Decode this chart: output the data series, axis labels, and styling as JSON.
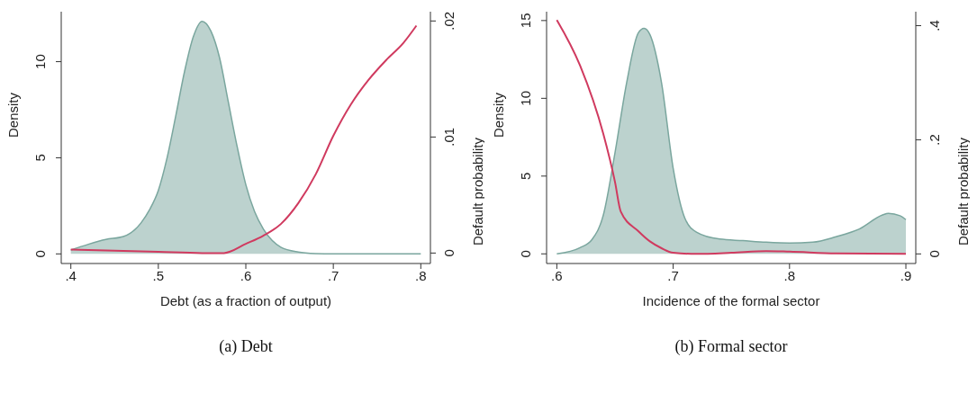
{
  "chart_data": [
    {
      "type": "area",
      "title": "(a)  Debt",
      "xlabel": "Debt (as a fraction of output)",
      "ylabel": "Density",
      "y2label": "Default probability",
      "xlim": [
        0.389,
        0.811
      ],
      "xticks": [
        {
          "value": 0.4,
          "label": ".4"
        },
        {
          "value": 0.5,
          "label": ".5"
        },
        {
          "value": 0.6,
          "label": ".6"
        },
        {
          "value": 0.7,
          "label": ".7"
        },
        {
          "value": 0.8,
          "label": ".8"
        }
      ],
      "ylim": [
        -0.5,
        12.6
      ],
      "yticks": [
        0,
        5,
        10
      ],
      "y2lim": [
        -0.0009,
        0.0208
      ],
      "y2ticks": [
        {
          "value": 0,
          "label": "0"
        },
        {
          "value": 0.01,
          "label": ".01"
        },
        {
          "value": 0.02,
          "label": ".02"
        }
      ],
      "series": [
        {
          "color": "#7aa69e",
          "x": [
            0.4,
            0.42,
            0.44,
            0.46,
            0.48,
            0.49,
            0.5,
            0.51,
            0.52,
            0.53,
            0.54,
            0.55,
            0.56,
            0.57,
            0.58,
            0.59,
            0.6,
            0.61,
            0.62,
            0.63,
            0.64,
            0.66,
            0.68,
            0.7,
            0.8
          ],
          "values": [
            0.2,
            0.5,
            0.75,
            0.9,
            1.6,
            2.3,
            3.3,
            5,
            7.2,
            9.5,
            11.3,
            12.1,
            11.6,
            10.2,
            7.9,
            5.6,
            3.6,
            2.2,
            1.3,
            0.7,
            0.35,
            0.1,
            0.02,
            0,
            0
          ]
        },
        {
          "type": "line",
          "axis": "y2",
          "color": "#d03a5f",
          "x": [
            0.4,
            0.45,
            0.5,
            0.55,
            0.575,
            0.6,
            0.62,
            0.64,
            0.66,
            0.68,
            0.7,
            0.72,
            0.74,
            0.76,
            0.78,
            0.795
          ],
          "values": [
            0.0003,
            0.0002,
            0.0001,
            0,
            0,
            0.0008,
            0.0015,
            0.0025,
            0.0043,
            0.0068,
            0.0101,
            0.0128,
            0.0149,
            0.0166,
            0.0181,
            0.0196
          ]
        }
      ]
    },
    {
      "type": "area",
      "title": "(b)  Formal sector",
      "xlabel": "Incidence of the formal sector",
      "ylabel": "Density",
      "y2label": "Default probability",
      "xlim": [
        0.5912,
        0.9085
      ],
      "xticks": [
        {
          "value": 0.6,
          "label": ".6"
        },
        {
          "value": 0.7,
          "label": ".7"
        },
        {
          "value": 0.8,
          "label": ".8"
        },
        {
          "value": 0.9,
          "label": ".9"
        }
      ],
      "ylim": [
        -0.62,
        15.57
      ],
      "yticks": [
        0,
        5,
        10,
        15
      ],
      "y2lim": [
        -0.0168,
        0.4245
      ],
      "y2ticks": [
        {
          "value": 0,
          "label": "0"
        },
        {
          "value": 0.2,
          "label": ".2"
        },
        {
          "value": 0.4,
          "label": ".4"
        }
      ],
      "series": [
        {
          "color": "#7aa69e",
          "x": [
            0.6,
            0.62,
            0.63,
            0.64,
            0.65,
            0.66,
            0.67,
            0.675,
            0.68,
            0.69,
            0.7,
            0.71,
            0.72,
            0.74,
            0.76,
            0.78,
            0.8,
            0.82,
            0.84,
            0.86,
            0.88,
            0.885,
            0.895,
            0.9
          ],
          "values": [
            0,
            0.4,
            0.9,
            2.5,
            6.5,
            11,
            14.2,
            14.5,
            14.1,
            11,
            5.5,
            2.3,
            1.4,
            0.95,
            0.85,
            0.75,
            0.7,
            0.75,
            1.1,
            1.6,
            2.5,
            2.6,
            2.45,
            2.2
          ]
        },
        {
          "type": "line",
          "axis": "y2",
          "color": "#d03a5f",
          "x": [
            0.6,
            0.62,
            0.64,
            0.65,
            0.655,
            0.67,
            0.68,
            0.69,
            0.7,
            0.72,
            0.75,
            0.78,
            0.8,
            0.84,
            0.9
          ],
          "values": [
            0.41,
            0.33,
            0.21,
            0.126,
            0.074,
            0.04,
            0.022,
            0.01,
            0.002,
            0,
            0.002,
            0.005,
            0.004,
            0.001,
            0
          ]
        }
      ]
    }
  ]
}
